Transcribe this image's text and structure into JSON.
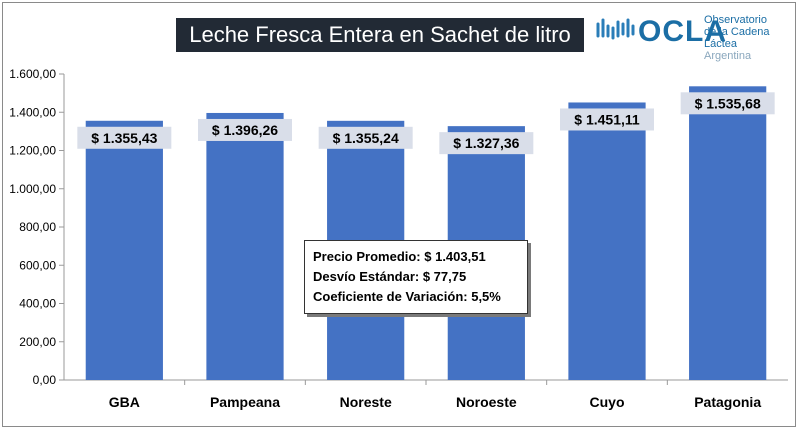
{
  "header": {
    "title": "Leche Fresca Entera en Sachet de litro",
    "logo_word": "OCLA",
    "logo_lines": [
      "Observatorio",
      "de la Cadena Láctea",
      "Argentina"
    ]
  },
  "stats": {
    "promedio": "Precio Promedio: $ 1.403,51",
    "desvio": "Desvío Estándar: $ 77,75",
    "coeficiente": "Coeficiente de Variación: 5,5%"
  },
  "colors": {
    "bar": "#4472c4",
    "label_bg": "#d9dee9",
    "title_bg": "#222a35"
  },
  "chart_data": {
    "type": "bar",
    "categories": [
      "GBA",
      "Pampeana",
      "Noreste",
      "Noroeste",
      "Cuyo",
      "Patagonia"
    ],
    "values": [
      1355.43,
      1396.26,
      1355.24,
      1327.36,
      1451.11,
      1535.68
    ],
    "value_labels": [
      "$ 1.355,43",
      "$ 1.396,26",
      "$ 1.355,24",
      "$ 1.327,36",
      "$ 1.451,11",
      "$ 1.535,68"
    ],
    "yticks": [
      "0,00",
      "200,00",
      "400,00",
      "600,00",
      "800,00",
      "1.000,00",
      "1.200,00",
      "1.400,00",
      "1.600,00"
    ],
    "ylim": [
      0,
      1600
    ],
    "grid": false,
    "title": "Leche Fresca Entera en Sachet de litro"
  }
}
